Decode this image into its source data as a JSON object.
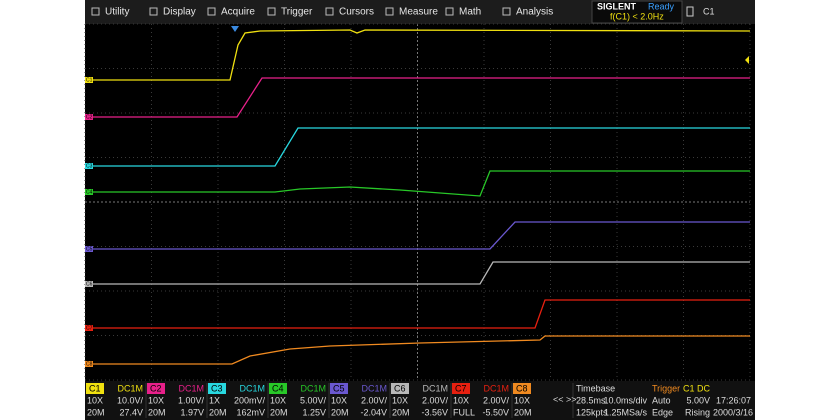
{
  "menu": [
    "Utility",
    "Display",
    "Acquire",
    "Trigger",
    "Cursors",
    "Measure",
    "Math",
    "Analysis"
  ],
  "status": {
    "brand": "SIGLENT",
    "state": "Ready",
    "frequency": "f(C1) < 2.0Hz",
    "channel": "C1"
  },
  "channels": [
    {
      "name": "C1",
      "color": "#f0e010",
      "coupling": "DC1M",
      "probe": "10X",
      "scale": "10.0V/",
      "bandwidth": "20M",
      "offset": "27.4V"
    },
    {
      "name": "C2",
      "color": "#e8208a",
      "coupling": "DC1M",
      "probe": "10X",
      "scale": "1.00V/",
      "bandwidth": "20M",
      "offset": "1.97V"
    },
    {
      "name": "C3",
      "color": "#28d8e0",
      "coupling": "DC1M",
      "probe": "1X",
      "scale": "200mV/",
      "bandwidth": "20M",
      "offset": "162mV"
    },
    {
      "name": "C4",
      "color": "#28c828",
      "coupling": "DC1M",
      "probe": "10X",
      "scale": "5.00V/",
      "bandwidth": "20M",
      "offset": "1.25V"
    },
    {
      "name": "C5",
      "color": "#6a58d0",
      "coupling": "DC1M",
      "probe": "10X",
      "scale": "2.00V/",
      "bandwidth": "20M",
      "offset": "-2.04V"
    },
    {
      "name": "C6",
      "color": "#b8b8b8",
      "coupling": "DC1M",
      "probe": "10X",
      "scale": "2.00V/",
      "bandwidth": "20M",
      "offset": "-3.56V"
    },
    {
      "name": "C7",
      "color": "#e82010",
      "coupling": "DC1M",
      "probe": "10X",
      "scale": "2.00V/",
      "bandwidth": "FULL",
      "offset": "-5.50V"
    },
    {
      "name": "C8",
      "color": "#f08a20",
      "probe": "10X",
      "bandwidth": "20M"
    }
  ],
  "timebase": {
    "label": "Timebase",
    "delay": "28.5ms",
    "scale": "10.0ms/div",
    "memory": "125kpts",
    "rate": "1.25MSa/s"
  },
  "trigger": {
    "label": "Trigger",
    "source": "C1 DC",
    "mode": "Auto",
    "level": "5.00V",
    "type": "Edge",
    "slope": "Rising"
  },
  "clock": {
    "time": "17:26:07",
    "date": "2000/3/16"
  }
}
